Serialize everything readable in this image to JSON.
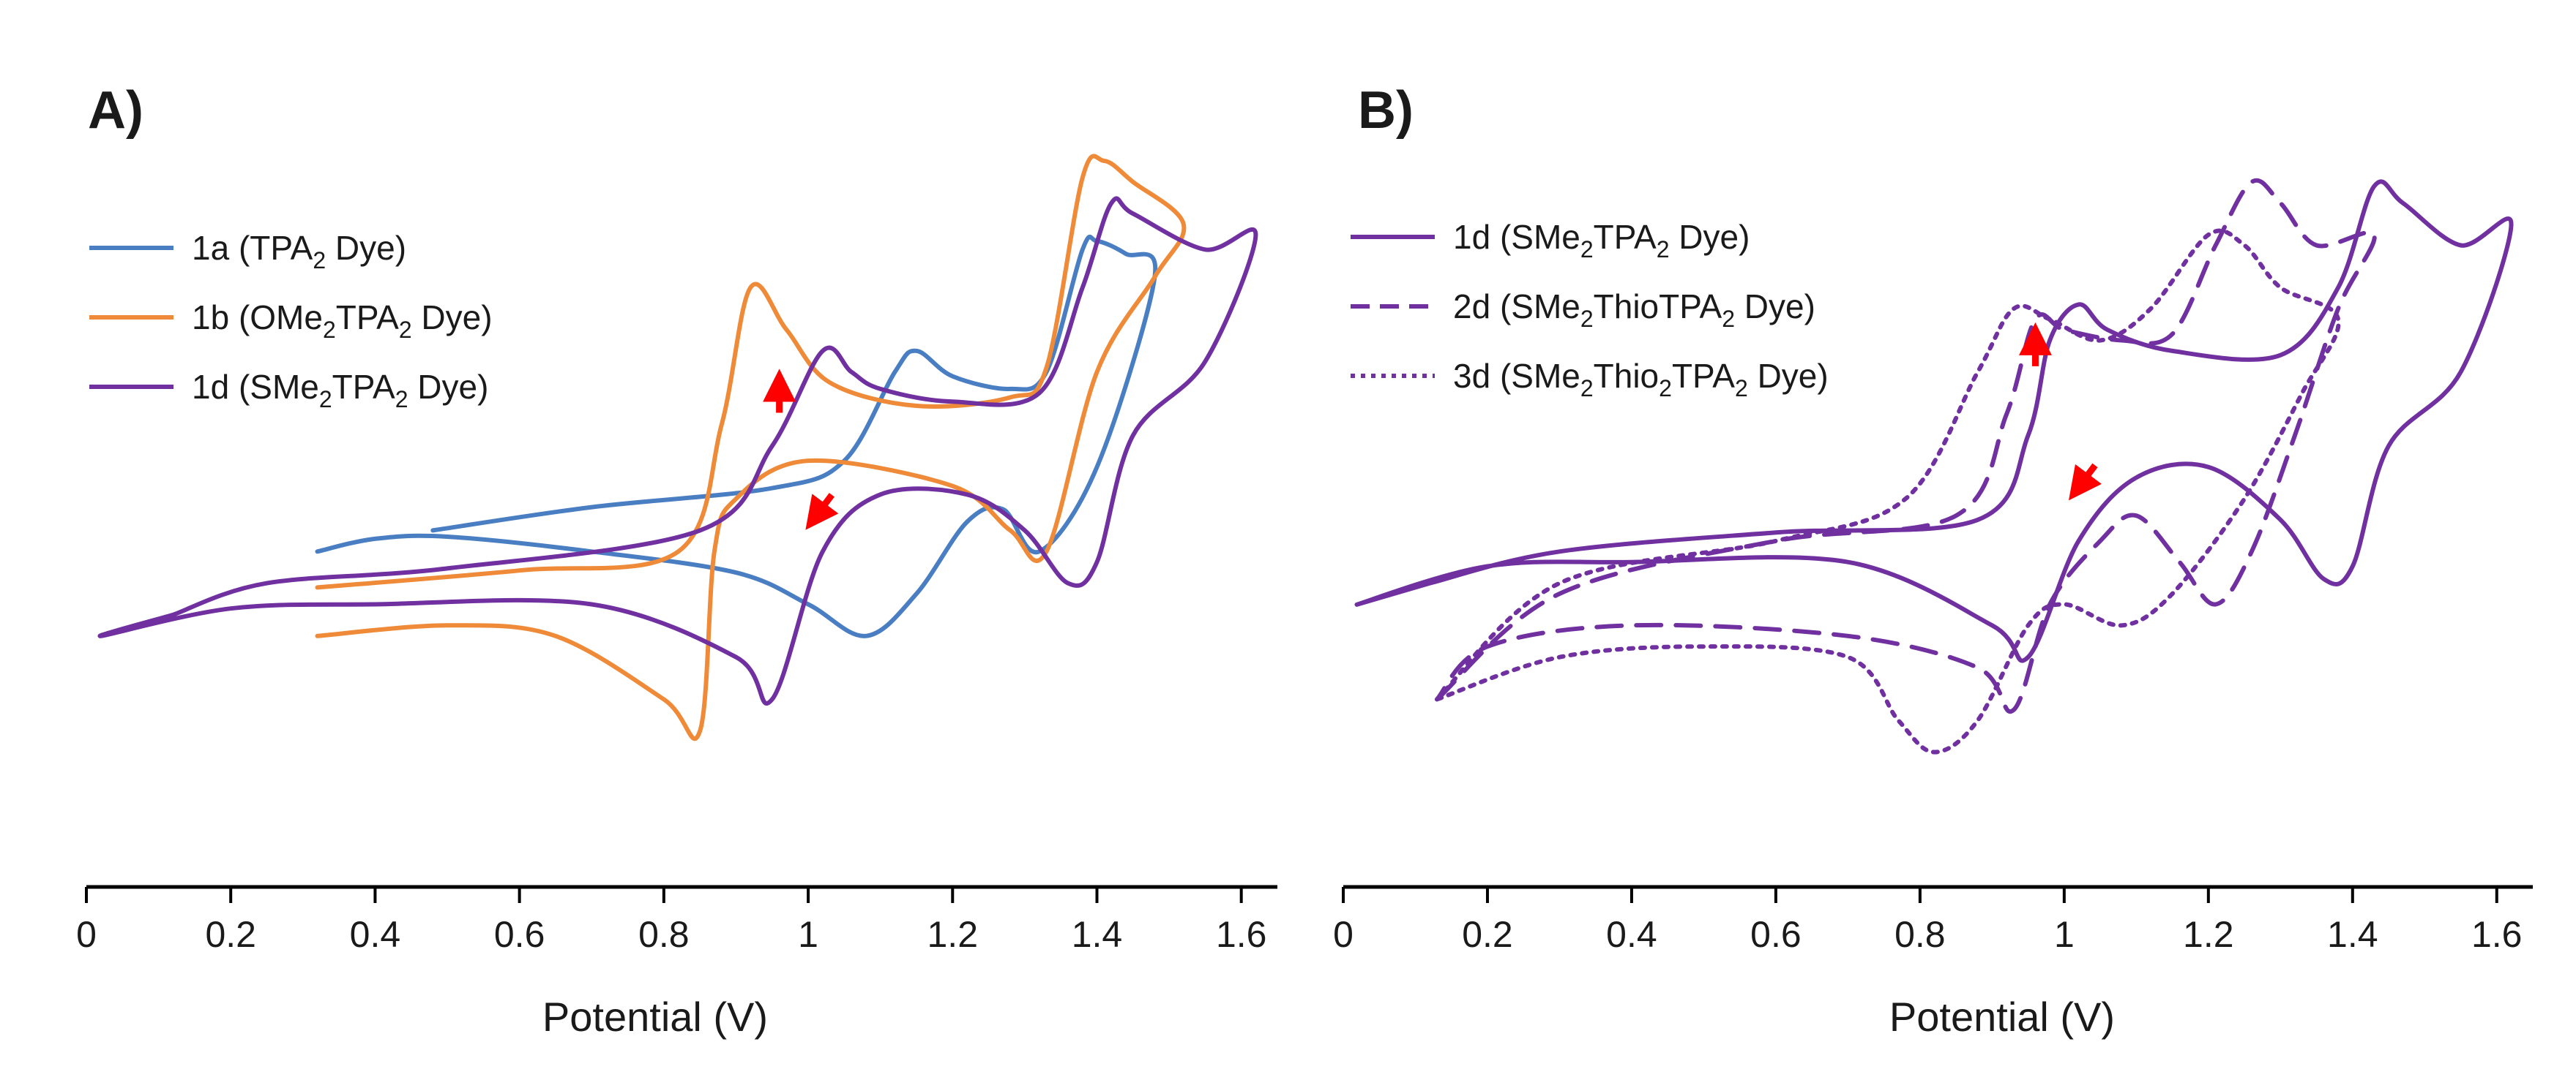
{
  "colors": {
    "blue": "#4a7ec2",
    "orange": "#ee8a38",
    "purple": "#7030a0",
    "arrow": "#ff0000"
  },
  "chart_data": [
    {
      "type": "line",
      "panel_label": "A)",
      "xlabel": "Potential (V)",
      "ylabel": "",
      "xlim": [
        0,
        1.65
      ],
      "ylim": [
        -1.5,
        1.8
      ],
      "x_ticks": [
        0,
        0.2,
        0.4,
        0.6,
        0.8,
        1,
        1.2,
        1.4,
        1.6
      ],
      "x_tick_labels": [
        "0",
        "0.2",
        "0.4",
        "0.6",
        "0.8",
        "1",
        "1.2",
        "1.4",
        "1.6"
      ],
      "grid": false,
      "legend_position": "top-left",
      "legend": [
        {
          "pre": "1a (TPA",
          "sub": "2",
          "post": " Dye)",
          "series": "1a",
          "style": "solid",
          "color": "#4a7ec2"
        },
        {
          "pre": "1b (OMe",
          "sub1": "2",
          "mid": "TPA",
          "sub2": "2",
          "post": " Dye)",
          "series": "1b",
          "style": "solid",
          "color": "#ee8a38"
        },
        {
          "pre": "1d (SMe",
          "sub1": "2",
          "mid": "TPA",
          "sub2": "2",
          "post": " Dye)",
          "series": "1d",
          "style": "solid",
          "color": "#7030a0"
        }
      ],
      "series": [
        {
          "name": "1a (TPA2 Dye)",
          "color": "#4a7ec2",
          "style": "solid",
          "points": [
            [
              0.48,
              0.05
            ],
            [
              0.7,
              0.16
            ],
            [
              0.95,
              0.25
            ],
            [
              1.05,
              0.38
            ],
            [
              1.12,
              0.8
            ],
            [
              1.15,
              0.9
            ],
            [
              1.2,
              0.78
            ],
            [
              1.28,
              0.72
            ],
            [
              1.33,
              0.8
            ],
            [
              1.38,
              1.38
            ],
            [
              1.4,
              1.42
            ],
            [
              1.44,
              1.36
            ],
            [
              1.48,
              1.25
            ],
            [
              1.4,
              0.35
            ],
            [
              1.32,
              -0.05
            ],
            [
              1.27,
              0.15
            ],
            [
              1.22,
              0.09
            ],
            [
              1.15,
              -0.25
            ],
            [
              1.08,
              -0.45
            ],
            [
              1.0,
              -0.3
            ],
            [
              0.9,
              -0.15
            ],
            [
              0.7,
              -0.05
            ],
            [
              0.5,
              0.02
            ],
            [
              0.4,
              0.01
            ],
            [
              0.32,
              -0.05
            ]
          ]
        },
        {
          "name": "1b (OMe2TPA2 Dye)",
          "color": "#ee8a38",
          "style": "solid",
          "points": [
            [
              0.32,
              -0.22
            ],
            [
              0.6,
              -0.14
            ],
            [
              0.82,
              -0.05
            ],
            [
              0.88,
              0.55
            ],
            [
              0.92,
              1.2
            ],
            [
              0.97,
              1.0
            ],
            [
              1.03,
              0.75
            ],
            [
              1.15,
              0.64
            ],
            [
              1.28,
              0.68
            ],
            [
              1.33,
              0.82
            ],
            [
              1.38,
              1.72
            ],
            [
              1.41,
              1.8
            ],
            [
              1.45,
              1.7
            ],
            [
              1.52,
              1.5
            ],
            [
              1.48,
              1.25
            ],
            [
              1.4,
              0.8
            ],
            [
              1.33,
              -0.05
            ],
            [
              1.28,
              0.05
            ],
            [
              1.2,
              0.26
            ],
            [
              1.0,
              0.38
            ],
            [
              0.9,
              0.2
            ],
            [
              0.87,
              -0.05
            ],
            [
              0.85,
              -0.9
            ],
            [
              0.8,
              -0.75
            ],
            [
              0.65,
              -0.45
            ],
            [
              0.5,
              -0.4
            ],
            [
              0.32,
              -0.45
            ]
          ]
        },
        {
          "name": "1d (SMe2TPA2 Dye)",
          "color": "#7030a0",
          "style": "solid",
          "points": [
            [
              0.12,
              -0.35
            ],
            [
              0.25,
              -0.2
            ],
            [
              0.5,
              -0.13
            ],
            [
              0.85,
              0.05
            ],
            [
              0.95,
              0.45
            ],
            [
              1.02,
              0.9
            ],
            [
              1.06,
              0.8
            ],
            [
              1.1,
              0.72
            ],
            [
              1.2,
              0.66
            ],
            [
              1.32,
              0.7
            ],
            [
              1.38,
              1.2
            ],
            [
              1.42,
              1.6
            ],
            [
              1.45,
              1.55
            ],
            [
              1.55,
              1.38
            ],
            [
              1.62,
              1.45
            ],
            [
              1.55,
              0.85
            ],
            [
              1.45,
              0.5
            ],
            [
              1.4,
              -0.1
            ],
            [
              1.36,
              -0.2
            ],
            [
              1.3,
              0.05
            ],
            [
              1.22,
              0.22
            ],
            [
              1.1,
              0.22
            ],
            [
              1.02,
              -0.05
            ],
            [
              0.95,
              -0.75
            ],
            [
              0.9,
              -0.55
            ],
            [
              0.7,
              -0.3
            ],
            [
              0.4,
              -0.3
            ],
            [
              0.2,
              -0.32
            ],
            [
              0.02,
              -0.45
            ],
            [
              0.12,
              -0.35
            ]
          ]
        }
      ],
      "arrows": [
        {
          "series": "1d",
          "at": [
            0.96,
            0.68
          ],
          "direction": "up"
        },
        {
          "series": "1d",
          "at": [
            1.02,
            0.16
          ],
          "direction": "down-left"
        }
      ]
    },
    {
      "type": "line",
      "panel_label": "B)",
      "xlabel": "Potential (V)",
      "ylabel": "",
      "xlim": [
        0,
        1.65
      ],
      "ylim": [
        -1.5,
        1.8
      ],
      "x_ticks": [
        0,
        0.2,
        0.4,
        0.6,
        0.8,
        1,
        1.2,
        1.4,
        1.6
      ],
      "x_tick_labels": [
        "0",
        "0.2",
        "0.4",
        "0.6",
        "0.8",
        "1",
        "1.2",
        "1.4",
        "1.6"
      ],
      "grid": false,
      "legend_position": "top-left",
      "legend": [
        {
          "pre": "1d (SMe",
          "sub1": "2",
          "mid": "TPA",
          "sub2": "2",
          "post": " Dye)",
          "series": "1d",
          "style": "solid",
          "color": "#7030a0"
        },
        {
          "pre": "2d (SMe",
          "sub1": "2",
          "mid": "ThioTPA",
          "sub2": "2",
          "post": " Dye)",
          "series": "2d",
          "style": "dashed",
          "color": "#7030a0"
        },
        {
          "pre": "3d (SMe",
          "sub1": "2",
          "mid": "Thio",
          "sub2": "2",
          "mid2": "TPA",
          "sub3": "2",
          "post": " Dye)",
          "series": "3d",
          "style": "dotted",
          "color": "#7030a0"
        }
      ],
      "series": [
        {
          "name": "1d (SMe2TPA2 Dye)",
          "color": "#7030a0",
          "style": "solid",
          "points": [
            [
              0.12,
              -0.2
            ],
            [
              0.3,
              -0.05
            ],
            [
              0.6,
              0.04
            ],
            [
              0.88,
              0.1
            ],
            [
              0.95,
              0.5
            ],
            [
              0.98,
              0.95
            ],
            [
              1.02,
              1.12
            ],
            [
              1.06,
              1.0
            ],
            [
              1.15,
              0.9
            ],
            [
              1.3,
              0.88
            ],
            [
              1.38,
              1.2
            ],
            [
              1.43,
              1.68
            ],
            [
              1.47,
              1.6
            ],
            [
              1.55,
              1.4
            ],
            [
              1.62,
              1.5
            ],
            [
              1.55,
              0.8
            ],
            [
              1.45,
              0.45
            ],
            [
              1.4,
              -0.12
            ],
            [
              1.36,
              -0.18
            ],
            [
              1.3,
              0.1
            ],
            [
              1.2,
              0.35
            ],
            [
              1.1,
              0.3
            ],
            [
              1.02,
              0.0
            ],
            [
              0.95,
              -0.55
            ],
            [
              0.9,
              -0.4
            ],
            [
              0.7,
              -0.1
            ],
            [
              0.4,
              -0.1
            ],
            [
              0.2,
              -0.12
            ],
            [
              0.02,
              -0.3
            ],
            [
              0.12,
              -0.2
            ]
          ]
        },
        {
          "name": "2d (SMe2ThioTPA2 Dye)",
          "color": "#7030a0",
          "style": "dashed",
          "points": [
            [
              0.13,
              -0.75
            ],
            [
              0.3,
              -0.25
            ],
            [
              0.6,
              0.0
            ],
            [
              0.85,
              0.12
            ],
            [
              0.92,
              0.6
            ],
            [
              0.96,
              1.05
            ],
            [
              1.0,
              1.0
            ],
            [
              1.08,
              0.95
            ],
            [
              1.15,
              0.98
            ],
            [
              1.21,
              1.4
            ],
            [
              1.26,
              1.7
            ],
            [
              1.3,
              1.6
            ],
            [
              1.35,
              1.4
            ],
            [
              1.43,
              1.45
            ],
            [
              1.38,
              1.1
            ],
            [
              1.32,
              0.5
            ],
            [
              1.26,
              -0.05
            ],
            [
              1.21,
              -0.3
            ],
            [
              1.16,
              -0.1
            ],
            [
              1.1,
              0.12
            ],
            [
              1.05,
              0.0
            ],
            [
              0.98,
              -0.3
            ],
            [
              0.93,
              -0.8
            ],
            [
              0.88,
              -0.6
            ],
            [
              0.7,
              -0.45
            ],
            [
              0.4,
              -0.4
            ],
            [
              0.2,
              -0.5
            ],
            [
              0.13,
              -0.75
            ]
          ]
        },
        {
          "name": "3d (SMe2Thio2TPA2 Dye)",
          "color": "#7030a0",
          "style": "dotted",
          "points": [
            [
              0.13,
              -0.75
            ],
            [
              0.3,
              -0.2
            ],
            [
              0.6,
              0.0
            ],
            [
              0.78,
              0.2
            ],
            [
              0.88,
              0.8
            ],
            [
              0.93,
              1.1
            ],
            [
              0.98,
              1.05
            ],
            [
              1.05,
              0.95
            ],
            [
              1.12,
              1.1
            ],
            [
              1.2,
              1.45
            ],
            [
              1.25,
              1.4
            ],
            [
              1.3,
              1.2
            ],
            [
              1.38,
              1.05
            ],
            [
              1.33,
              0.7
            ],
            [
              1.25,
              0.2
            ],
            [
              1.15,
              -0.25
            ],
            [
              1.08,
              -0.4
            ],
            [
              1.0,
              -0.3
            ],
            [
              0.95,
              -0.4
            ],
            [
              0.88,
              -0.85
            ],
            [
              0.82,
              -1.0
            ],
            [
              0.77,
              -0.85
            ],
            [
              0.7,
              -0.55
            ],
            [
              0.5,
              -0.5
            ],
            [
              0.3,
              -0.55
            ],
            [
              0.13,
              -0.75
            ]
          ]
        }
      ],
      "arrows": [
        {
          "series": "1d",
          "at": [
            0.96,
            0.9
          ],
          "direction": "up"
        },
        {
          "series": "1d",
          "at": [
            1.03,
            0.3
          ],
          "direction": "down-left"
        }
      ]
    }
  ]
}
